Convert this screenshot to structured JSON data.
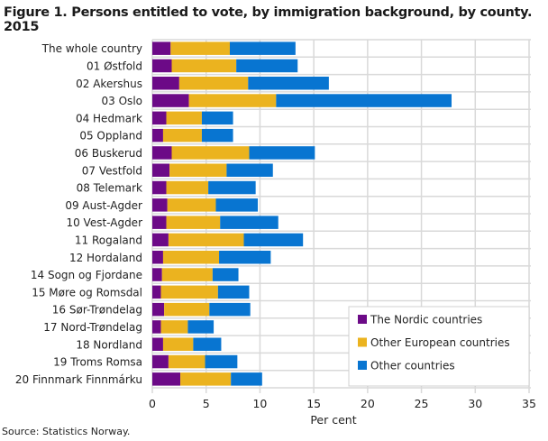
{
  "chart_data": {
    "type": "bar",
    "orientation": "horizontal",
    "stacked": true,
    "title": "Figure 1. Persons entitled to vote, by immigration background, by county. 2015",
    "xlabel": "Per cent",
    "ylabel": "",
    "xlim": [
      0,
      35
    ],
    "xticks": [
      0,
      5,
      10,
      15,
      20,
      25,
      30,
      35
    ],
    "grid": true,
    "legend_position": "bottom-right",
    "categories": [
      "The whole country",
      "01 Østfold",
      "02 Akershus",
      "03 Oslo",
      "04 Hedmark",
      "05 Oppland",
      "06 Buskerud",
      "07 Vestfold",
      "08 Telemark",
      "09 Aust-Agder",
      "10 Vest-Agder",
      "11 Rogaland",
      "12 Hordaland",
      "14 Sogn og Fjordane",
      "15 Møre og Romsdal",
      "16 Sør-Trøndelag",
      "17 Nord-Trøndelag",
      "18 Nordland",
      "19 Troms Romsa",
      "20 Finnmark Finnmárku"
    ],
    "series": [
      {
        "name": "The Nordic countries",
        "color": "#6c0a87",
        "values": [
          1.7,
          1.8,
          2.5,
          3.4,
          1.3,
          1.0,
          1.8,
          1.6,
          1.3,
          1.4,
          1.3,
          1.5,
          1.0,
          0.9,
          0.8,
          1.1,
          0.8,
          1.0,
          1.5,
          2.6
        ]
      },
      {
        "name": "Other European countries",
        "color": "#ebb31f",
        "values": [
          5.5,
          6.0,
          6.4,
          8.1,
          3.3,
          3.6,
          7.2,
          5.3,
          3.9,
          4.5,
          5.0,
          7.0,
          5.2,
          4.7,
          5.3,
          4.2,
          2.5,
          2.8,
          3.4,
          4.7
        ]
      },
      {
        "name": "Other countries",
        "color": "#0875d1",
        "values": [
          6.1,
          5.7,
          7.5,
          16.3,
          2.9,
          2.9,
          6.1,
          4.3,
          4.4,
          3.9,
          5.4,
          5.5,
          4.8,
          2.4,
          2.9,
          3.8,
          2.4,
          2.6,
          3.0,
          2.9
        ]
      }
    ]
  },
  "source": "Source: Statistics Norway."
}
